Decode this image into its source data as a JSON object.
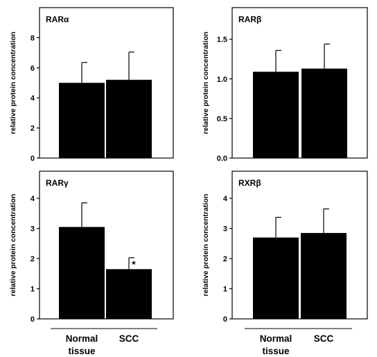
{
  "chart_data": [
    {
      "type": "bar",
      "title": "RARα",
      "ylabel": "relative protein concentration",
      "categories": [
        "Normal tissue",
        "SCC"
      ],
      "values": [
        5.0,
        5.2
      ],
      "errors": [
        1.35,
        1.85
      ],
      "ylim": [
        0,
        10
      ],
      "yticks": [
        0,
        2,
        4,
        6,
        8
      ],
      "ytick_labels": [
        "0",
        "2",
        "4",
        "6",
        "8"
      ],
      "show_category_labels": false
    },
    {
      "type": "bar",
      "title": "RARβ",
      "ylabel": "relative protein concentration",
      "categories": [
        "Normal tissue",
        "SCC"
      ],
      "values": [
        1.09,
        1.13
      ],
      "errors": [
        0.27,
        0.31
      ],
      "ylim": [
        0,
        1.9
      ],
      "yticks": [
        0,
        0.5,
        1.0,
        1.5
      ],
      "ytick_labels": [
        "0.0",
        "0.5",
        "1.0",
        "1.5"
      ],
      "show_category_labels": false
    },
    {
      "type": "bar",
      "title": "RARγ",
      "ylabel": "relative protein concentration",
      "categories": [
        "Normal tissue",
        "SCC"
      ],
      "values": [
        3.05,
        1.65
      ],
      "errors": [
        0.8,
        0.38
      ],
      "ylim": [
        0,
        4.9
      ],
      "yticks": [
        0,
        1,
        2,
        3,
        4
      ],
      "ytick_labels": [
        "0",
        "1",
        "2",
        "3",
        "4"
      ],
      "annotations": [
        {
          "category": "SCC",
          "text": "*"
        }
      ],
      "show_category_labels": true
    },
    {
      "type": "bar",
      "title": "RXRβ",
      "ylabel": "relative protein concentration",
      "categories": [
        "Normal tissue",
        "SCC"
      ],
      "values": [
        2.7,
        2.85
      ],
      "errors": [
        0.67,
        0.8
      ],
      "ylim": [
        0,
        4.9
      ],
      "yticks": [
        0,
        1,
        2,
        3,
        4
      ],
      "ytick_labels": [
        "0",
        "1",
        "2",
        "3",
        "4"
      ],
      "show_category_labels": true
    }
  ],
  "category_display_lines": {
    "Normal tissue": [
      "Normal",
      "tissue"
    ],
    "SCC": [
      "SCC"
    ]
  },
  "colors": {
    "bar": "#000000",
    "frame": "#000000"
  }
}
